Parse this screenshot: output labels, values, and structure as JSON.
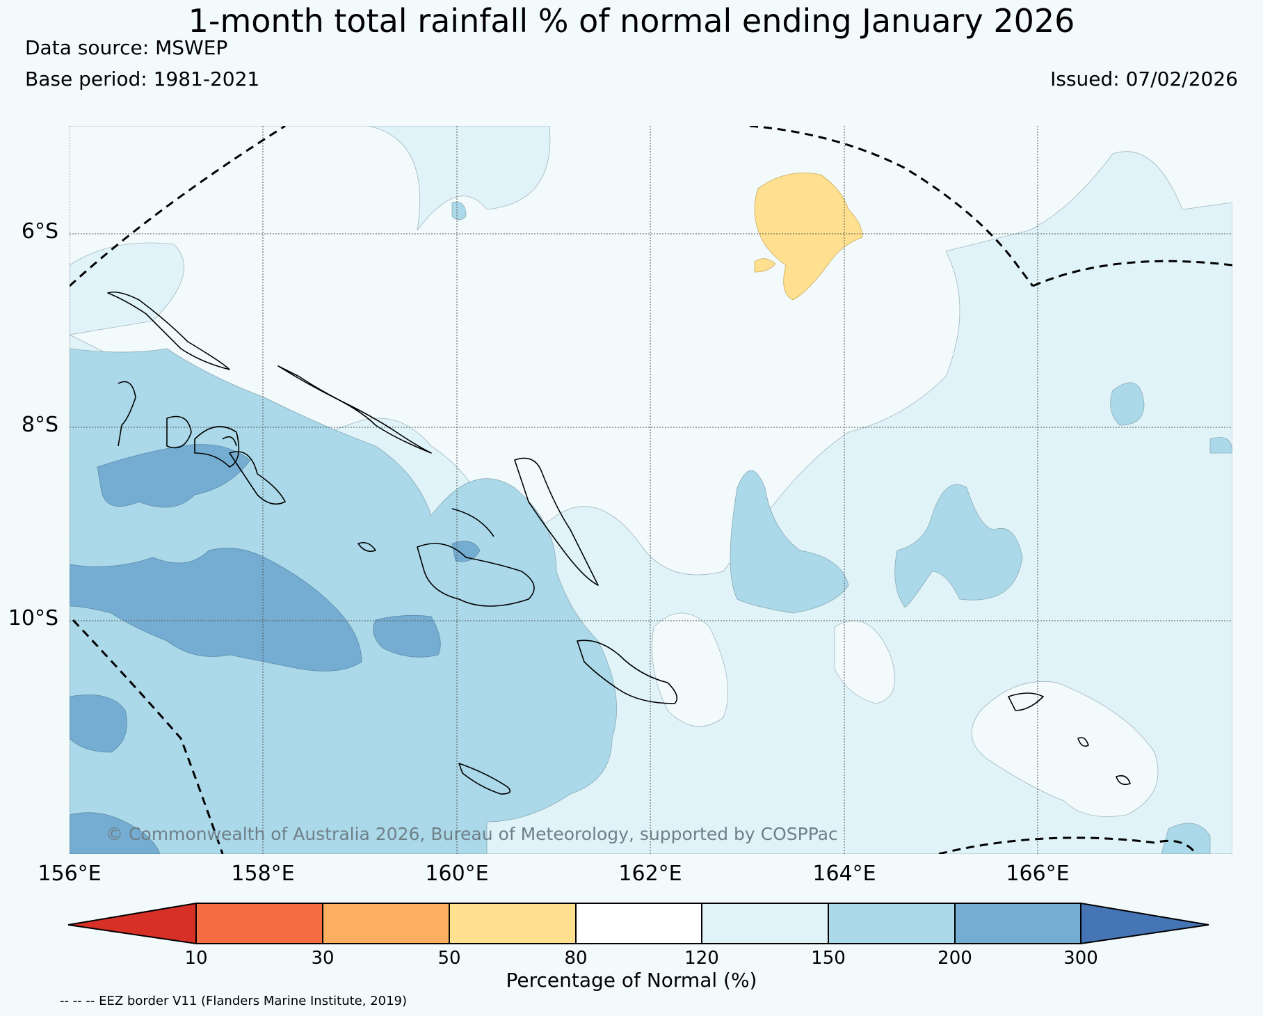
{
  "header": {
    "title": "1-month total rainfall % of normal ending January 2026",
    "data_source": "Data source: MSWEP",
    "base_period": "Base period: 1981-2021",
    "issued": "Issued: 07/02/2026"
  },
  "map": {
    "lat_labels": [
      "6°S",
      "8°S",
      "10°S"
    ],
    "lon_labels": [
      "156°E",
      "158°E",
      "160°E",
      "162°E",
      "164°E",
      "166°E"
    ],
    "copyright": "© Commonwealth of Australia 2026, Bureau of Meteorology, supported by COSPPac",
    "colors": {
      "ocean_80_120": "#f3fafc",
      "band_120_150": "#e0f3f8",
      "band_150_200": "#abd9e9",
      "band_200_300": "#74add1",
      "band_50_80": "#fee090",
      "gridline": "#555555",
      "coastline": "#000000"
    }
  },
  "colorbar": {
    "ticks": [
      "10",
      "30",
      "50",
      "80",
      "120",
      "150",
      "200",
      "300"
    ],
    "label": "Percentage of Normal (%)",
    "colors": [
      "#d73027",
      "#f46d43",
      "#fdae61",
      "#fee090",
      "#ffffff",
      "#e0f3f8",
      "#abd9e9",
      "#74add1",
      "#4575b4"
    ]
  },
  "legend": {
    "eez": "-- -- -- EEZ border V11 (Flanders Marine Institute, 2019)"
  }
}
